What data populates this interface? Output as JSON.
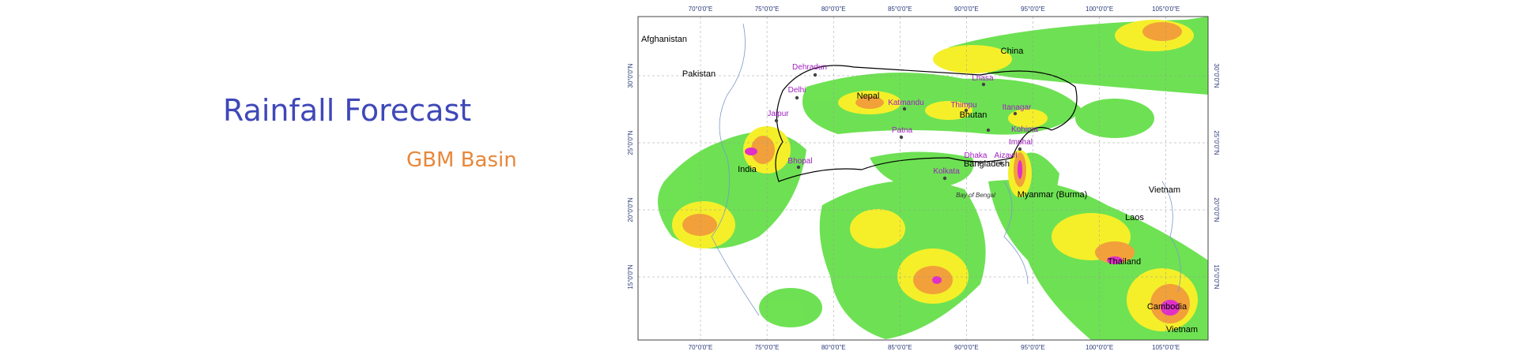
{
  "header": {
    "title": "Rainfall Forecast",
    "subtitle": "GBM Basin"
  },
  "map": {
    "lon_labels": [
      "70°0'0\"E",
      "75°0'0\"E",
      "80°0'0\"E",
      "85°0'0\"E",
      "90°0'0\"E",
      "95°0'0\"E",
      "100°0'0\"E",
      "105°0'0\"E"
    ],
    "lat_labels": [
      "30°0'0\"N",
      "25°0'0\"N",
      "20°0'0\"N",
      "15°0'0\"N"
    ],
    "countries": [
      "Afghanistan",
      "Pakistan",
      "Nepal",
      "China",
      "Bhutan",
      "India",
      "Bangladesh",
      "Myanmar (Burma)",
      "Vietnam",
      "Laos",
      "Thailand",
      "Cambodia",
      "Vietnam"
    ],
    "cities": [
      "Dehradun",
      "Delhi",
      "Jaipur",
      "Bhopal",
      "Katmandu",
      "Thimpu",
      "Lhasa",
      "Itanagar",
      "Patna",
      "Kohima",
      "Imphal",
      "Dhaka",
      "Aizawl",
      "Kolkata"
    ],
    "water": "Bay of Bengal"
  }
}
